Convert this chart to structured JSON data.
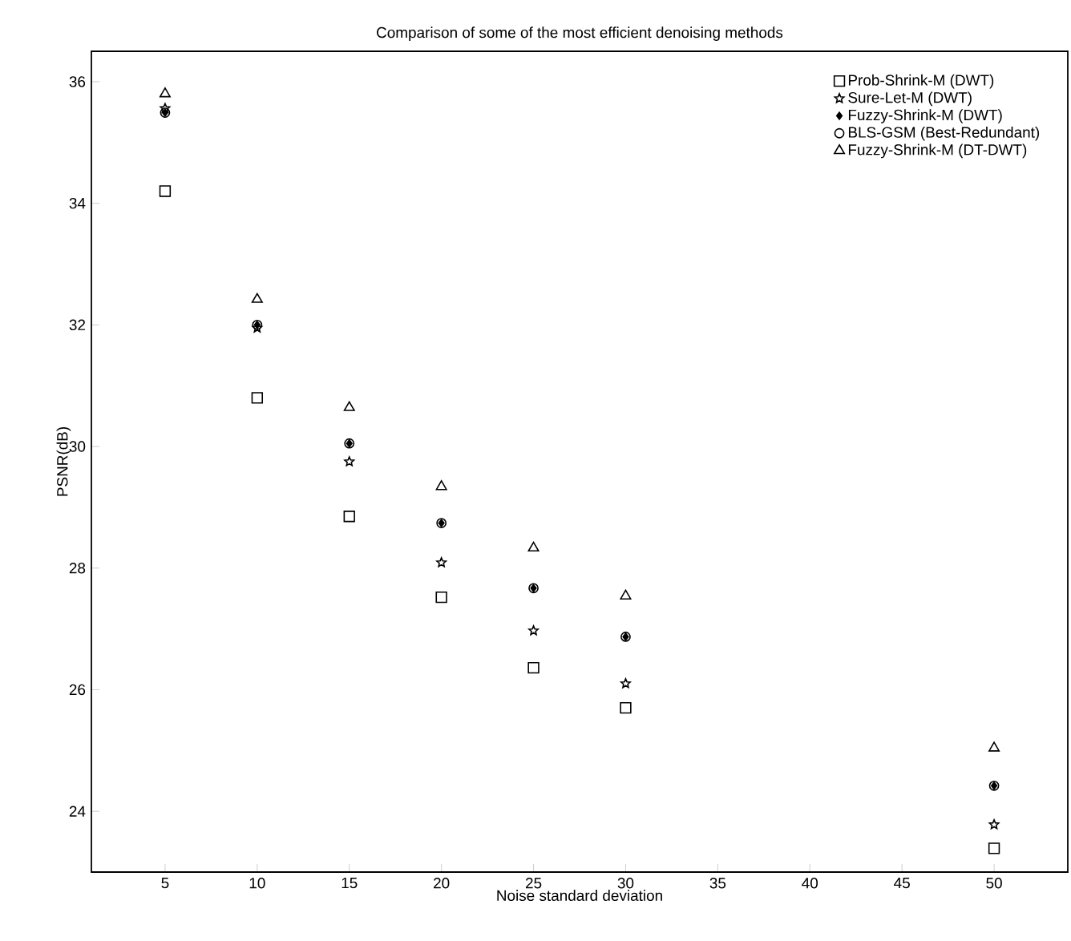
{
  "chart_data": {
    "type": "scatter",
    "title": "Comparison of some of the most efficient denoising methods",
    "xlabel": "Noise standard deviation",
    "ylabel": "PSNR(dB)",
    "x": [
      5,
      10,
      15,
      20,
      25,
      30,
      50
    ],
    "series": [
      {
        "name": "Prob-Shrink-M (DWT)",
        "color": "#000000",
        "marker": "square",
        "values": [
          34.2,
          30.8,
          28.85,
          27.52,
          26.36,
          25.7,
          23.39
        ]
      },
      {
        "name": "Sure-Let-M (DWT)",
        "color": "#000000",
        "marker": "star",
        "values": [
          35.56,
          31.95,
          29.75,
          28.09,
          26.97,
          26.1,
          23.78
        ]
      },
      {
        "name": "Fuzzy-Shrink-M (DWT)",
        "color": "#000000",
        "marker": "diamond",
        "values": [
          35.49,
          32.0,
          30.05,
          28.74,
          27.67,
          26.87,
          24.42
        ]
      },
      {
        "name": "BLS-GSM (Best-Redundant)",
        "color": "#000000",
        "marker": "circle",
        "values": [
          35.49,
          32.0,
          30.05,
          28.74,
          27.67,
          26.87,
          24.42
        ]
      },
      {
        "name": "Fuzzy-Shrink-M (DT-DWT)",
        "color": "#000000",
        "marker": "triangle",
        "values": [
          35.8,
          32.42,
          30.64,
          29.34,
          28.33,
          27.54,
          25.04
        ]
      }
    ],
    "xlim": [
      1,
      54
    ],
    "ylim": [
      23,
      36.5
    ],
    "xticks": [
      5,
      10,
      15,
      20,
      25,
      30,
      35,
      40,
      45,
      50
    ],
    "yticks": [
      24,
      26,
      28,
      30,
      32,
      34,
      36
    ],
    "grid": false,
    "legend": "top right"
  }
}
